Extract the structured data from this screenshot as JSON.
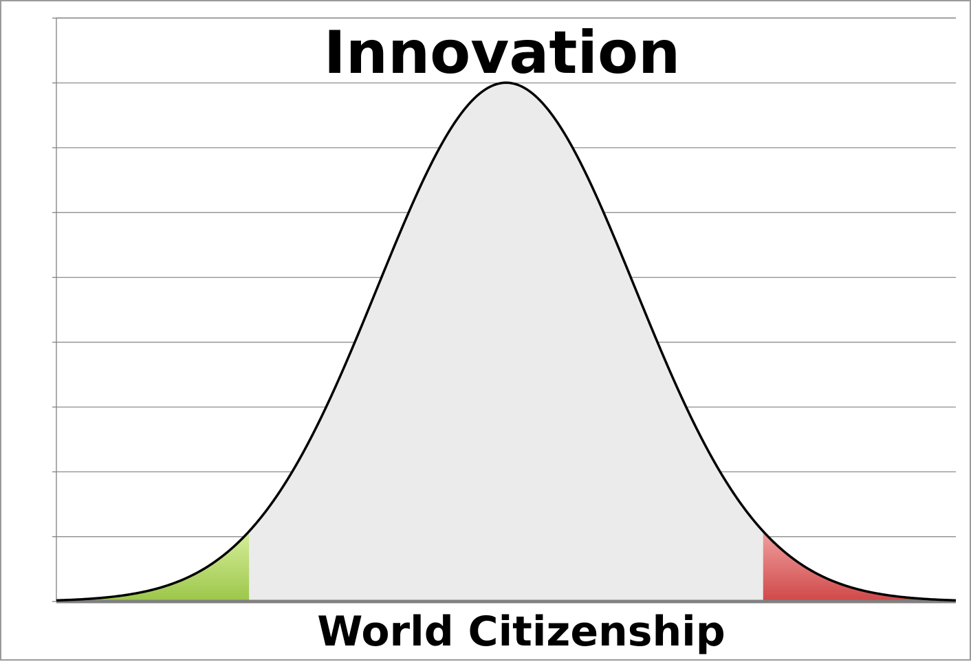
{
  "chart_data": {
    "type": "area",
    "title": "Innovation",
    "xlabel": "World Citizenship",
    "ylabel": "",
    "distribution": "normal",
    "xlim": [
      -3.5,
      3.5
    ],
    "ylim": [
      0,
      8
    ],
    "curve_peak": 8,
    "grid": true,
    "legend": "none",
    "regions": [
      {
        "name": "",
        "from": -3.5,
        "to": -2.0,
        "color_top": "#d6ee9a",
        "color_bottom": "#9cc64a"
      },
      {
        "name": "",
        "from": -2.0,
        "to": 2.0,
        "color_top": "#ebebeb",
        "color_bottom": "#ebebeb"
      },
      {
        "name": "",
        "from": 2.0,
        "to": 3.5,
        "color_top": "#f0a0a0",
        "color_bottom": "#d04848"
      }
    ]
  },
  "colors": {
    "curve": "#000000",
    "gridline": "#8c8c8c",
    "axis": "#808080",
    "frame": "#9a9a9a",
    "body_fill": "#ebebeb"
  }
}
